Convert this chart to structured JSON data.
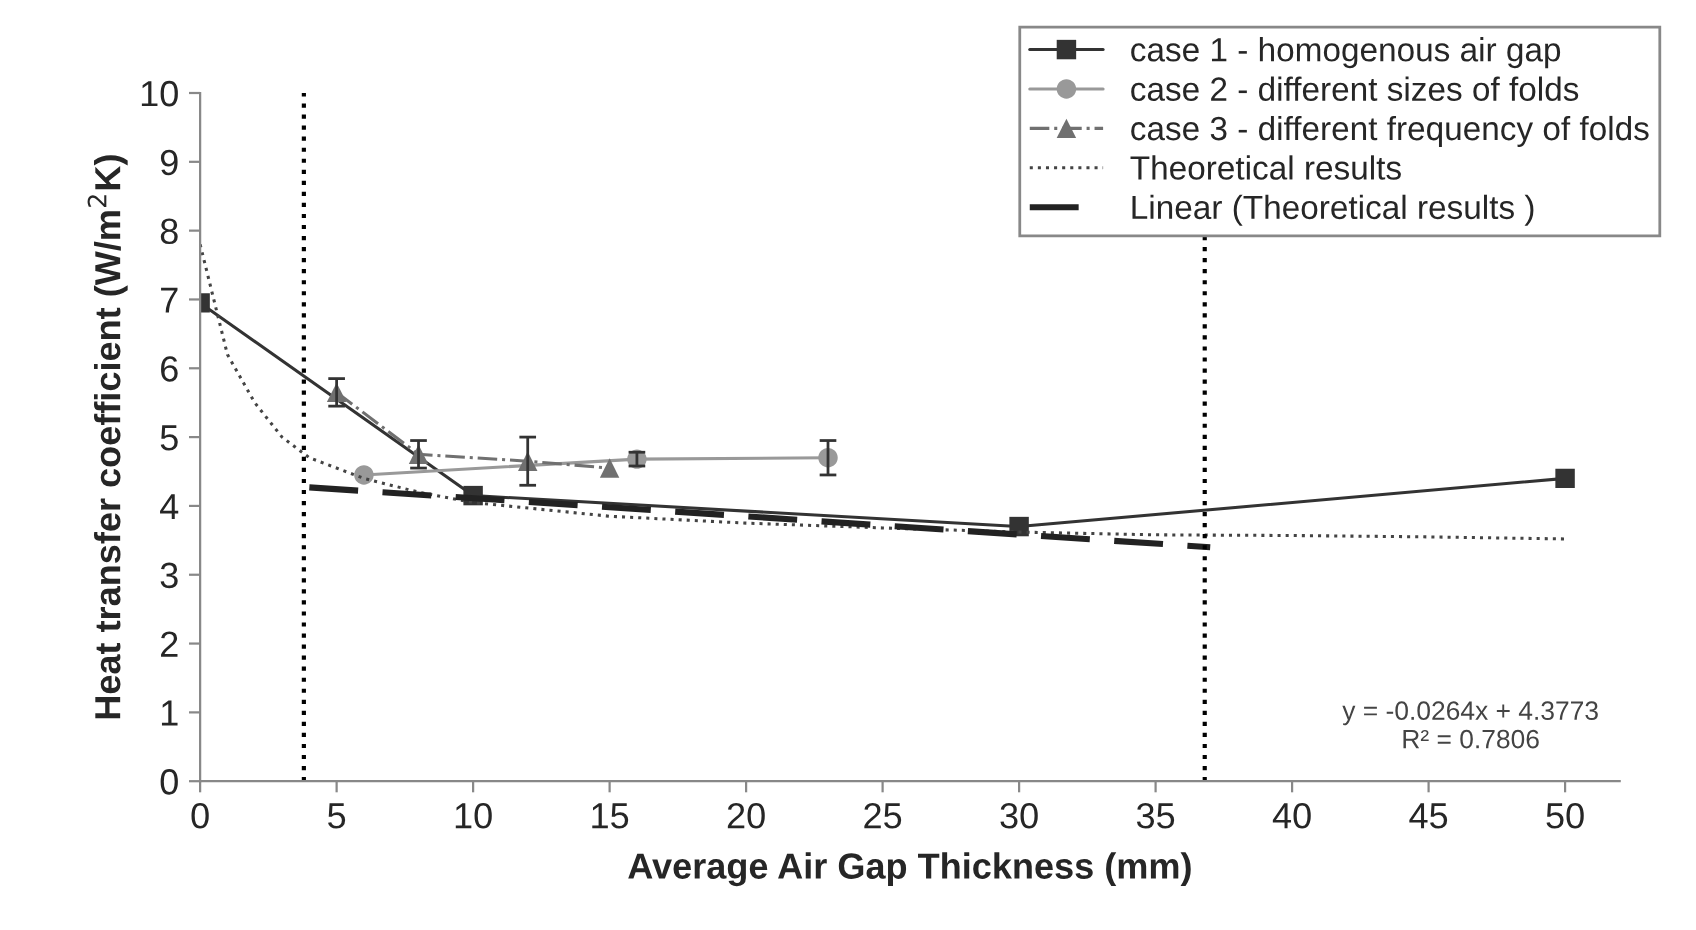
{
  "chart_data": {
    "type": "line",
    "xlabel": "Average Air Gap Thickness (mm)",
    "ylabel": "Heat transfer coefficient (W/m$^{2}$K)",
    "xlim": [
      0,
      52
    ],
    "ylim": [
      0,
      10
    ],
    "xticks": [
      0,
      5,
      10,
      15,
      20,
      25,
      30,
      35,
      40,
      45,
      50
    ],
    "yticks": [
      0,
      1,
      2,
      3,
      4,
      5,
      6,
      7,
      8,
      9,
      10
    ],
    "grid": false,
    "legend": "top right",
    "series": [
      {
        "name": "case 1 - homogenous air gap",
        "color": "#333333",
        "marker": "square",
        "line_style": "solid",
        "x": [
          0,
          10,
          30,
          50
        ],
        "values": [
          6.95,
          4.15,
          3.7,
          4.4
        ]
      },
      {
        "name": "case 2 - different sizes of folds",
        "color": "#999999",
        "marker": "circle",
        "line_style": "solid",
        "x": [
          6,
          16,
          23
        ],
        "values": [
          4.45,
          4.68,
          4.7
        ],
        "errors": [
          null,
          0.1,
          0.25
        ]
      },
      {
        "name": "case 3 - different frequency of folds",
        "color": "#707070",
        "marker": "triangle",
        "line_style": "dashdot",
        "x": [
          5,
          8,
          12,
          15
        ],
        "values": [
          5.65,
          4.75,
          4.65,
          4.55
        ],
        "errors": [
          0.2,
          0.2,
          0.35,
          null
        ]
      },
      {
        "name": "Theoretical results",
        "color": "#444444",
        "marker": "none",
        "line_style": "dotted",
        "x": [
          0,
          1,
          2,
          3,
          4,
          6,
          8,
          10,
          15,
          20,
          25,
          30,
          35,
          40,
          45,
          50
        ],
        "values": [
          7.8,
          6.2,
          5.5,
          5.0,
          4.7,
          4.4,
          4.2,
          4.05,
          3.85,
          3.75,
          3.68,
          3.62,
          3.58,
          3.57,
          3.55,
          3.52
        ]
      },
      {
        "name": "Linear (Theoretical results )",
        "color": "#222222",
        "marker": "none",
        "line_style": "dashed",
        "x": [
          4,
          37
        ],
        "values": [
          4.27,
          3.4
        ]
      }
    ],
    "ref_lines": [
      {
        "axis": "x",
        "value": 3.8,
        "color": "#000000",
        "line_style": "dotted"
      },
      {
        "axis": "x",
        "value": 36.8,
        "color": "#000000",
        "line_style": "dotted"
      }
    ],
    "annotations": [
      "y = -0.0264x + 4.3773\nR² = 0.7806"
    ]
  }
}
